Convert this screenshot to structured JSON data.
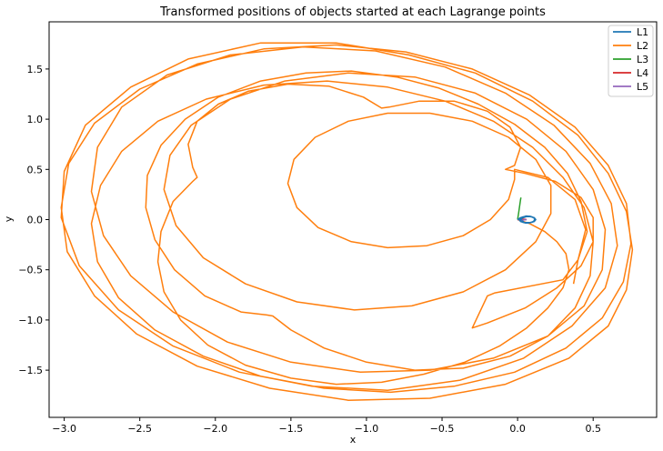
{
  "chart_data": {
    "type": "line",
    "title": "Transformed positions of objects started at each Lagrange points",
    "xlabel": "x",
    "ylabel": "y",
    "xlim": [
      -3.1,
      0.92
    ],
    "ylim": [
      -1.97,
      1.97
    ],
    "xticks": [
      -3.0,
      -2.5,
      -2.0,
      -1.5,
      -1.0,
      -0.5,
      0.0,
      0.5
    ],
    "yticks": [
      -1.5,
      -1.0,
      -0.5,
      0.0,
      0.5,
      1.0,
      1.5
    ],
    "xtick_labels": [
      "−3.0",
      "−2.5",
      "−2.0",
      "−1.5",
      "−1.0",
      "−0.5",
      "0.0",
      "0.5"
    ],
    "ytick_labels": [
      "−1.5",
      "−1.0",
      "−0.5",
      "0.0",
      "0.5",
      "1.0",
      "1.5"
    ],
    "grid": false,
    "legend_position": "top-right",
    "series": [
      {
        "name": "L1",
        "color": "#1f77b4",
        "description_points": [
          [
            0.0,
            0.0
          ],
          [
            0.02,
            0.02
          ],
          [
            0.05,
            0.03
          ],
          [
            0.08,
            0.03
          ],
          [
            0.11,
            0.02
          ],
          [
            0.12,
            0.0
          ],
          [
            0.11,
            -0.02
          ],
          [
            0.08,
            -0.03
          ],
          [
            0.05,
            -0.03
          ],
          [
            0.02,
            -0.02
          ],
          [
            0.01,
            0.0
          ],
          [
            0.03,
            0.025
          ],
          [
            0.06,
            0.035
          ],
          [
            0.09,
            0.03
          ],
          [
            0.115,
            0.01
          ],
          [
            0.11,
            -0.015
          ],
          [
            0.085,
            -0.03
          ],
          [
            0.055,
            -0.035
          ],
          [
            0.03,
            -0.025
          ],
          [
            0.015,
            -0.005
          ],
          [
            0.025,
            0.02
          ],
          [
            0.055,
            0.035
          ],
          [
            0.085,
            0.033
          ],
          [
            0.11,
            0.018
          ],
          [
            0.12,
            -0.002
          ],
          [
            0.1,
            -0.025
          ],
          [
            0.07,
            -0.035
          ],
          [
            0.04,
            -0.03
          ],
          [
            0.02,
            -0.012
          ],
          [
            0.03,
            0.015
          ],
          [
            0.065,
            0.033
          ],
          [
            0.095,
            0.028
          ],
          [
            0.115,
            0.008
          ],
          [
            0.105,
            -0.02
          ],
          [
            0.075,
            -0.033
          ],
          [
            0.045,
            -0.03
          ],
          [
            0.03,
            -0.01
          ]
        ]
      },
      {
        "name": "L2",
        "color": "#ff7f0e",
        "description_points": [
          [
            0.0,
            0.0
          ],
          [
            0.08,
            -0.04
          ],
          [
            0.18,
            -0.12
          ],
          [
            0.26,
            -0.22
          ],
          [
            0.32,
            -0.34
          ],
          [
            0.34,
            -0.5
          ],
          [
            0.3,
            -0.68
          ],
          [
            0.2,
            -0.88
          ],
          [
            0.06,
            -1.08
          ],
          [
            -0.12,
            -1.26
          ],
          [
            -0.35,
            -1.42
          ],
          [
            -0.62,
            -1.54
          ],
          [
            -0.9,
            -1.62
          ],
          [
            -1.2,
            -1.64
          ],
          [
            -1.5,
            -1.58
          ],
          [
            -1.8,
            -1.45
          ],
          [
            -2.05,
            -1.25
          ],
          [
            -2.23,
            -1.0
          ],
          [
            -2.34,
            -0.72
          ],
          [
            -2.38,
            -0.42
          ],
          [
            -2.36,
            -0.12
          ],
          [
            -2.28,
            0.18
          ],
          [
            -2.15,
            0.38
          ],
          [
            -2.12,
            0.42
          ],
          [
            -2.15,
            0.52
          ],
          [
            -2.18,
            0.75
          ],
          [
            -2.12,
            0.98
          ],
          [
            -1.98,
            1.15
          ],
          [
            -1.78,
            1.28
          ],
          [
            -1.52,
            1.35
          ],
          [
            -1.25,
            1.33
          ],
          [
            -1.02,
            1.22
          ],
          [
            -0.9,
            1.11
          ],
          [
            -0.85,
            1.12
          ],
          [
            -0.65,
            1.18
          ],
          [
            -0.42,
            1.18
          ],
          [
            -0.2,
            1.08
          ],
          [
            -0.05,
            0.92
          ],
          [
            0.02,
            0.72
          ],
          [
            -0.02,
            0.54
          ],
          [
            -0.08,
            0.5
          ],
          [
            0.05,
            0.46
          ],
          [
            0.25,
            0.38
          ],
          [
            0.42,
            0.22
          ],
          [
            0.5,
            0.02
          ],
          [
            0.5,
            -0.22
          ],
          [
            0.42,
            -0.46
          ],
          [
            0.26,
            -0.68
          ],
          [
            0.05,
            -0.88
          ],
          [
            -0.2,
            -1.03
          ],
          [
            -0.3,
            -1.08
          ],
          [
            -0.2,
            -0.76
          ],
          [
            -0.15,
            -0.73
          ],
          [
            0.3,
            -0.6
          ],
          [
            0.4,
            -0.4
          ],
          [
            0.46,
            -0.12
          ],
          [
            0.42,
            0.18
          ],
          [
            0.33,
            0.46
          ],
          [
            0.18,
            0.72
          ],
          [
            -0.02,
            0.95
          ],
          [
            -0.26,
            1.15
          ],
          [
            -0.52,
            1.31
          ],
          [
            -0.8,
            1.42
          ],
          [
            -1.1,
            1.48
          ],
          [
            -1.4,
            1.46
          ],
          [
            -1.7,
            1.38
          ],
          [
            -1.98,
            1.22
          ],
          [
            -2.2,
            1.0
          ],
          [
            -2.36,
            0.74
          ],
          [
            -2.45,
            0.44
          ],
          [
            -2.46,
            0.12
          ],
          [
            -2.4,
            -0.2
          ],
          [
            -2.27,
            -0.5
          ],
          [
            -2.07,
            -0.76
          ],
          [
            -1.83,
            -0.92
          ],
          [
            -1.66,
            -0.95
          ],
          [
            -1.62,
            -0.96
          ],
          [
            -1.5,
            -1.1
          ],
          [
            -1.28,
            -1.28
          ],
          [
            -1.0,
            -1.42
          ],
          [
            -0.68,
            -1.5
          ],
          [
            -0.36,
            -1.48
          ],
          [
            -0.05,
            -1.36
          ],
          [
            0.2,
            -1.16
          ],
          [
            0.38,
            -0.88
          ],
          [
            0.48,
            -0.56
          ],
          [
            0.5,
            -0.22
          ],
          [
            0.44,
            0.12
          ],
          [
            0.3,
            0.42
          ],
          [
            0.1,
            0.72
          ],
          [
            -0.16,
            0.98
          ],
          [
            -0.48,
            1.18
          ],
          [
            -0.86,
            1.32
          ],
          [
            -1.26,
            1.38
          ],
          [
            -1.68,
            1.34
          ],
          [
            -2.06,
            1.2
          ],
          [
            -2.38,
            0.98
          ],
          [
            -2.62,
            0.68
          ],
          [
            -2.76,
            0.34
          ],
          [
            -2.82,
            -0.04
          ],
          [
            -2.78,
            -0.42
          ],
          [
            -2.64,
            -0.78
          ],
          [
            -2.4,
            -1.1
          ],
          [
            -2.08,
            -1.36
          ],
          [
            -1.7,
            -1.56
          ],
          [
            -1.28,
            -1.68
          ],
          [
            -0.84,
            -1.72
          ],
          [
            -0.42,
            -1.66
          ],
          [
            -0.02,
            -1.52
          ],
          [
            0.32,
            -1.28
          ],
          [
            0.56,
            -0.98
          ],
          [
            0.7,
            -0.62
          ],
          [
            0.75,
            -0.24
          ],
          [
            0.72,
            0.16
          ],
          [
            0.6,
            0.54
          ],
          [
            0.38,
            0.92
          ],
          [
            0.08,
            1.24
          ],
          [
            -0.3,
            1.5
          ],
          [
            -0.74,
            1.67
          ],
          [
            -1.2,
            1.74
          ],
          [
            -1.68,
            1.7
          ],
          [
            -2.12,
            1.55
          ],
          [
            -2.5,
            1.3
          ],
          [
            -2.8,
            0.96
          ],
          [
            -2.97,
            0.56
          ],
          [
            -3.02,
            0.12
          ],
          [
            -2.98,
            -0.32
          ],
          [
            -2.8,
            -0.76
          ],
          [
            -2.52,
            -1.14
          ],
          [
            -2.12,
            -1.46
          ],
          [
            -1.64,
            -1.68
          ],
          [
            -1.12,
            -1.8
          ],
          [
            -0.58,
            -1.78
          ],
          [
            -0.08,
            -1.64
          ],
          [
            0.34,
            -1.38
          ],
          [
            0.6,
            -1.06
          ],
          [
            0.72,
            -0.7
          ],
          [
            0.76,
            -0.3
          ],
          [
            0.72,
            0.08
          ],
          [
            0.6,
            0.46
          ],
          [
            0.4,
            0.84
          ],
          [
            0.1,
            1.18
          ],
          [
            -0.28,
            1.46
          ],
          [
            -0.72,
            1.64
          ],
          [
            -1.2,
            1.76
          ],
          [
            -1.7,
            1.76
          ],
          [
            -2.18,
            1.6
          ],
          [
            -2.56,
            1.32
          ],
          [
            -2.86,
            0.94
          ],
          [
            -3.0,
            0.48
          ],
          [
            -3.02,
            0.02
          ],
          [
            -2.9,
            -0.46
          ],
          [
            -2.64,
            -0.9
          ],
          [
            -2.28,
            -1.26
          ],
          [
            -1.84,
            -1.52
          ],
          [
            -1.36,
            -1.66
          ],
          [
            -0.86,
            -1.7
          ],
          [
            -0.38,
            -1.6
          ],
          [
            0.04,
            -1.38
          ],
          [
            0.36,
            -1.06
          ],
          [
            0.58,
            -0.68
          ],
          [
            0.66,
            -0.26
          ],
          [
            0.62,
            0.16
          ],
          [
            0.48,
            0.56
          ],
          [
            0.24,
            0.94
          ],
          [
            -0.08,
            1.26
          ],
          [
            -0.48,
            1.52
          ],
          [
            -0.94,
            1.68
          ],
          [
            -1.42,
            1.72
          ],
          [
            -1.9,
            1.64
          ],
          [
            -2.32,
            1.44
          ],
          [
            -2.62,
            1.12
          ],
          [
            -2.78,
            0.72
          ],
          [
            -2.82,
            0.28
          ],
          [
            -2.74,
            -0.16
          ],
          [
            -2.56,
            -0.56
          ],
          [
            -2.28,
            -0.92
          ],
          [
            -1.92,
            -1.22
          ],
          [
            -1.5,
            -1.42
          ],
          [
            -1.04,
            -1.52
          ],
          [
            -0.58,
            -1.5
          ],
          [
            -0.16,
            -1.38
          ],
          [
            0.2,
            -1.16
          ],
          [
            0.44,
            -0.86
          ],
          [
            0.56,
            -0.5
          ],
          [
            0.58,
            -0.1
          ],
          [
            0.5,
            0.3
          ],
          [
            0.32,
            0.68
          ],
          [
            0.06,
            1.0
          ],
          [
            -0.28,
            1.26
          ],
          [
            -0.68,
            1.42
          ],
          [
            -1.12,
            1.46
          ],
          [
            -1.54,
            1.38
          ],
          [
            -1.9,
            1.2
          ],
          [
            -2.16,
            0.94
          ],
          [
            -2.3,
            0.64
          ],
          [
            -2.34,
            0.3
          ],
          [
            -2.26,
            -0.06
          ],
          [
            -2.08,
            -0.38
          ],
          [
            -1.8,
            -0.64
          ],
          [
            -1.46,
            -0.82
          ],
          [
            -1.08,
            -0.9
          ],
          [
            -0.7,
            -0.86
          ],
          [
            -0.36,
            -0.72
          ],
          [
            -0.08,
            -0.5
          ],
          [
            0.12,
            -0.22
          ],
          [
            0.22,
            0.06
          ],
          [
            0.22,
            0.34
          ],
          [
            0.12,
            0.6
          ],
          [
            -0.06,
            0.82
          ],
          [
            -0.3,
            0.98
          ],
          [
            -0.58,
            1.06
          ],
          [
            -0.86,
            1.06
          ],
          [
            -1.12,
            0.98
          ],
          [
            -1.34,
            0.82
          ],
          [
            -1.48,
            0.6
          ],
          [
            -1.52,
            0.36
          ],
          [
            -1.46,
            0.12
          ],
          [
            -1.32,
            -0.08
          ],
          [
            -1.1,
            -0.22
          ],
          [
            -0.86,
            -0.28
          ],
          [
            -0.6,
            -0.26
          ],
          [
            -0.36,
            -0.16
          ],
          [
            -0.18,
            0.0
          ],
          [
            -0.06,
            0.2
          ],
          [
            -0.02,
            0.4
          ],
          [
            -0.02,
            0.5
          ],
          [
            0.2,
            0.42
          ],
          [
            0.38,
            0.2
          ],
          [
            0.45,
            -0.1
          ],
          [
            0.4,
            -0.4
          ],
          [
            0.37,
            -0.64
          ]
        ]
      },
      {
        "name": "L3",
        "color": "#2ca02c",
        "description_points": [
          [
            0.0,
            0.0
          ],
          [
            0.005,
            0.05
          ],
          [
            0.01,
            0.1
          ],
          [
            0.015,
            0.15
          ],
          [
            0.02,
            0.2
          ],
          [
            0.022,
            0.22
          ]
        ]
      },
      {
        "name": "L4",
        "color": "#d62728",
        "description_points": [
          [
            0.0,
            0.0
          ],
          [
            0.03,
            0.005
          ],
          [
            0.06,
            0.0
          ]
        ]
      },
      {
        "name": "L5",
        "color": "#9467bd",
        "description_points": [
          [
            0.0,
            0.0
          ],
          [
            0.03,
            -0.005
          ],
          [
            0.06,
            0.0
          ]
        ]
      }
    ]
  }
}
